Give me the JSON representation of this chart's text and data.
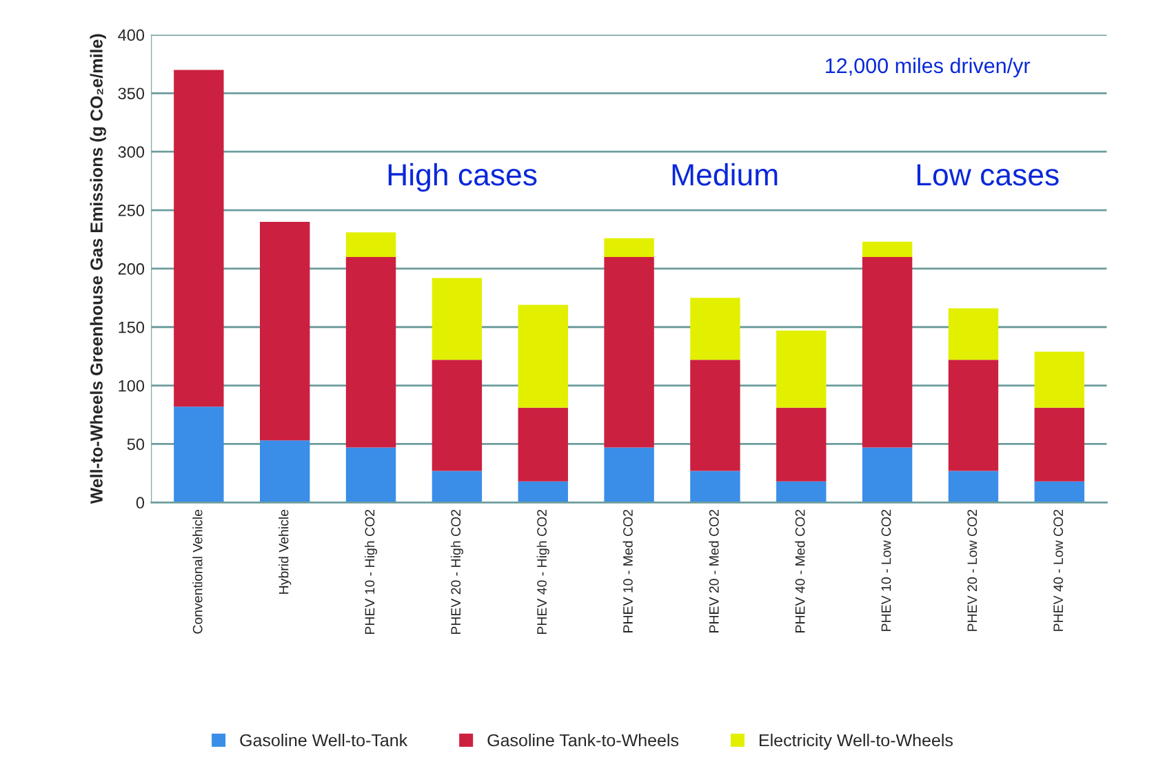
{
  "chart_data": {
    "type": "bar",
    "stacked": true,
    "ylabel": "Well-to-Wheels Greenhouse Gas Emissions (g CO₂e/mile)",
    "categories": [
      "Conventional Vehicle",
      "Hybrid Vehicle",
      "PHEV 10 - High CO2",
      "PHEV 20 - High CO2",
      "PHEV 40 - High CO2",
      "PHEV 10 - Med CO2",
      "PHEV 20 - Med CO2",
      "PHEV 40 - Med CO2",
      "PHEV 10 - Low CO2",
      "PHEV 20 - Low CO2",
      "PHEV 40 - Low CO2"
    ],
    "series": [
      {
        "name": "Gasoline Well-to-Tank",
        "color": "#3a8ee8",
        "values": [
          82,
          53,
          47,
          27,
          18,
          47,
          27,
          18,
          47,
          27,
          18
        ]
      },
      {
        "name": "Gasoline Tank-to-Wheels",
        "color": "#cc2040",
        "values": [
          288,
          187,
          163,
          95,
          63,
          163,
          95,
          63,
          163,
          95,
          63
        ]
      },
      {
        "name": "Electricity Well-to-Wheels",
        "color": "#e2f000",
        "values": [
          null,
          null,
          21,
          70,
          88,
          16,
          53,
          66,
          13,
          44,
          48
        ]
      }
    ],
    "ylim": [
      0,
      400
    ],
    "yticks": [
      0,
      50,
      100,
      150,
      200,
      250,
      300,
      350,
      400
    ],
    "grid": "y",
    "legend": "bottom",
    "annotations": [
      "12,000 miles driven/yr",
      "High cases",
      "Medium",
      "Low cases"
    ]
  }
}
